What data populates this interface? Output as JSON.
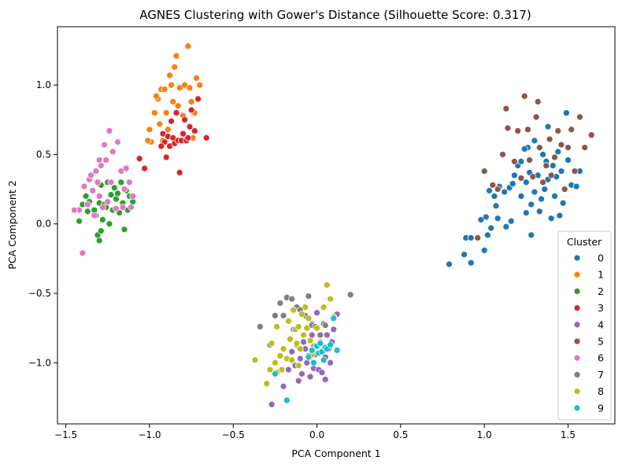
{
  "chart_data": {
    "type": "scatter",
    "title": "AGNES Clustering with Gower's Distance (Silhouette Score: 0.317)",
    "xlabel": "PCA Component 1",
    "ylabel": "PCA Component 2",
    "xlim": [
      -1.55,
      1.78
    ],
    "ylim": [
      -1.44,
      1.42
    ],
    "xticks": [
      -1.5,
      -1.0,
      -0.5,
      0.0,
      0.5,
      1.0,
      1.5
    ],
    "xtick_labels": [
      "−1.5",
      "−1.0",
      "−0.5",
      "0.0",
      "0.5",
      "1.0",
      "1.5"
    ],
    "yticks": [
      1.0,
      0.5,
      0.0,
      -0.5,
      -1.0
    ],
    "ytick_labels": [
      "1.0",
      "0.5",
      "0.0",
      "−0.5",
      "−1.0"
    ],
    "grid": false,
    "legend": {
      "title": "Cluster",
      "position": "lower-right"
    },
    "series": [
      {
        "name": "0",
        "color": "#1f77b4",
        "points": [
          [
            0.79,
            -0.29
          ],
          [
            0.88,
            -0.22
          ],
          [
            0.89,
            -0.1
          ],
          [
            0.92,
            -0.28
          ],
          [
            0.92,
            -0.1
          ],
          [
            0.98,
            0.03
          ],
          [
            1.0,
            -0.19
          ],
          [
            1.01,
            0.05
          ],
          [
            1.02,
            -0.08
          ],
          [
            1.03,
            0.24
          ],
          [
            1.04,
            -0.03
          ],
          [
            1.06,
            0.2
          ],
          [
            1.07,
            0.13
          ],
          [
            1.08,
            0.04
          ],
          [
            1.09,
            0.27
          ],
          [
            1.12,
            0.23
          ],
          [
            1.13,
            -0.02
          ],
          [
            1.15,
            0.26
          ],
          [
            1.17,
            0.29
          ],
          [
            1.18,
            0.35
          ],
          [
            1.2,
            0.42
          ],
          [
            1.22,
            0.2
          ],
          [
            1.22,
            0.45
          ],
          [
            1.25,
            0.08
          ],
          [
            1.25,
            0.3
          ],
          [
            1.26,
            0.55
          ],
          [
            1.27,
            0.37
          ],
          [
            1.28,
            -0.08
          ],
          [
            1.28,
            0.14
          ],
          [
            1.3,
            0.23
          ],
          [
            1.32,
            0.35
          ],
          [
            1.33,
            0.09
          ],
          [
            1.35,
            0.5
          ],
          [
            1.36,
            0.25
          ],
          [
            1.37,
            0.45
          ],
          [
            1.38,
            0.7
          ],
          [
            1.38,
            0.32
          ],
          [
            1.4,
            0.04
          ],
          [
            1.41,
            0.42
          ],
          [
            1.42,
            0.2
          ],
          [
            1.43,
            0.34
          ],
          [
            1.45,
            0.06
          ],
          [
            1.46,
            0.38
          ],
          [
            1.47,
            0.15
          ],
          [
            1.49,
            0.8
          ],
          [
            1.5,
            0.46
          ],
          [
            1.52,
            0.28
          ],
          [
            1.55,
            0.27
          ],
          [
            1.57,
            0.38
          ],
          [
            1.3,
            0.6
          ],
          [
            1.34,
            0.18
          ],
          [
            1.44,
            0.52
          ],
          [
            1.16,
            0.02
          ],
          [
            1.24,
            0.54
          ]
        ]
      },
      {
        "name": "1",
        "color": "#ff7f0e",
        "points": [
          [
            -1.0,
            0.68
          ],
          [
            -0.99,
            0.59
          ],
          [
            -0.97,
            0.8
          ],
          [
            -0.95,
            0.9
          ],
          [
            -0.94,
            0.72
          ],
          [
            -0.93,
            0.97
          ],
          [
            -0.92,
            0.6
          ],
          [
            -0.91,
            0.97
          ],
          [
            -0.9,
            0.8
          ],
          [
            -0.89,
            0.68
          ],
          [
            -0.88,
            1.07
          ],
          [
            -0.87,
            1.0
          ],
          [
            -0.86,
            0.88
          ],
          [
            -0.85,
            1.13
          ],
          [
            -0.84,
            1.21
          ],
          [
            -0.83,
            0.85
          ],
          [
            -0.82,
            0.98
          ],
          [
            -0.81,
            0.6
          ],
          [
            -0.8,
            0.78
          ],
          [
            -0.79,
            1.0
          ],
          [
            -0.78,
            0.62
          ],
          [
            -0.77,
            1.28
          ],
          [
            -0.76,
            0.98
          ],
          [
            -0.75,
            0.88
          ],
          [
            -0.74,
            0.62
          ],
          [
            -0.73,
            0.8
          ],
          [
            -0.72,
            1.05
          ],
          [
            -0.7,
            1.0
          ],
          [
            -0.96,
            0.92
          ],
          [
            -1.01,
            0.6
          ]
        ]
      },
      {
        "name": "2",
        "color": "#2ca02c",
        "points": [
          [
            -1.42,
            0.02
          ],
          [
            -1.4,
            0.14
          ],
          [
            -1.38,
            0.2
          ],
          [
            -1.37,
            0.09
          ],
          [
            -1.36,
            0.16
          ],
          [
            -1.34,
            0.24
          ],
          [
            -1.33,
            0.1
          ],
          [
            -1.32,
            0.06
          ],
          [
            -1.31,
            -0.08
          ],
          [
            -1.3,
            0.15
          ],
          [
            -1.3,
            -0.12
          ],
          [
            -1.29,
            0.28
          ],
          [
            -1.28,
            0.03
          ],
          [
            -1.27,
            0.14
          ],
          [
            -1.25,
            0.3
          ],
          [
            -1.24,
            0.0
          ],
          [
            -1.23,
            0.21
          ],
          [
            -1.22,
            0.1
          ],
          [
            -1.21,
            0.26
          ],
          [
            -1.2,
            0.18
          ],
          [
            -1.19,
            0.22
          ],
          [
            -1.18,
            0.08
          ],
          [
            -1.17,
            0.3
          ],
          [
            -1.16,
            0.15
          ],
          [
            -1.15,
            -0.04
          ],
          [
            -1.14,
            0.24
          ],
          [
            -1.13,
            0.1
          ],
          [
            -1.12,
            0.2
          ],
          [
            -1.1,
            0.16
          ],
          [
            -1.29,
            -0.05
          ],
          [
            -1.26,
            0.12
          ]
        ]
      },
      {
        "name": "3",
        "color": "#d62728",
        "points": [
          [
            -1.06,
            0.47
          ],
          [
            -1.03,
            0.4
          ],
          [
            -0.92,
            0.65
          ],
          [
            -0.91,
            0.59
          ],
          [
            -0.9,
            0.48
          ],
          [
            -0.89,
            0.63
          ],
          [
            -0.88,
            0.56
          ],
          [
            -0.87,
            0.74
          ],
          [
            -0.86,
            0.62
          ],
          [
            -0.85,
            0.58
          ],
          [
            -0.84,
            0.8
          ],
          [
            -0.83,
            0.6
          ],
          [
            -0.82,
            0.37
          ],
          [
            -0.81,
            0.6
          ],
          [
            -0.8,
            0.65
          ],
          [
            -0.79,
            0.75
          ],
          [
            -0.78,
            0.6
          ],
          [
            -0.76,
            0.7
          ],
          [
            -0.75,
            0.82
          ],
          [
            -0.73,
            0.67
          ],
          [
            -0.71,
            0.9
          ],
          [
            -0.66,
            0.62
          ],
          [
            -0.93,
            0.56
          ],
          [
            -0.77,
            0.62
          ]
        ]
      },
      {
        "name": "4",
        "color": "#9467bd",
        "points": [
          [
            -0.27,
            -1.3
          ],
          [
            -0.2,
            -1.17
          ],
          [
            -0.17,
            -1.05
          ],
          [
            -0.15,
            -0.92
          ],
          [
            -0.13,
            -1.02
          ],
          [
            -0.12,
            -0.87
          ],
          [
            -0.11,
            -1.13
          ],
          [
            -0.1,
            -0.97
          ],
          [
            -0.09,
            -1.08
          ],
          [
            -0.08,
            -0.85
          ],
          [
            -0.07,
            -0.9
          ],
          [
            -0.06,
            -1.0
          ],
          [
            -0.05,
            -0.95
          ],
          [
            -0.04,
            -1.1
          ],
          [
            -0.03,
            -0.8
          ],
          [
            -0.02,
            -1.04
          ],
          [
            -0.01,
            -0.94
          ],
          [
            0.0,
            -0.64
          ],
          [
            0.01,
            -1.05
          ],
          [
            0.02,
            -0.86
          ],
          [
            0.03,
            -1.07
          ],
          [
            0.04,
            -0.72
          ],
          [
            0.05,
            -0.96
          ],
          [
            0.06,
            -0.8
          ],
          [
            0.07,
            -0.9
          ],
          [
            0.08,
            -1.0
          ],
          [
            0.09,
            -0.85
          ],
          [
            0.1,
            -0.76
          ],
          [
            0.12,
            -0.65
          ],
          [
            -0.14,
            -0.76
          ],
          [
            -0.03,
            -0.72
          ],
          [
            0.05,
            -1.12
          ]
        ]
      },
      {
        "name": "5",
        "color": "#8c564b",
        "points": [
          [
            0.96,
            -0.1
          ],
          [
            1.0,
            0.38
          ],
          [
            1.08,
            0.25
          ],
          [
            1.11,
            0.5
          ],
          [
            1.13,
            0.83
          ],
          [
            1.14,
            0.69
          ],
          [
            1.18,
            0.45
          ],
          [
            1.2,
            0.67
          ],
          [
            1.22,
            0.33
          ],
          [
            1.24,
            0.92
          ],
          [
            1.26,
            0.68
          ],
          [
            1.27,
            0.46
          ],
          [
            1.29,
            0.34
          ],
          [
            1.31,
            0.77
          ],
          [
            1.32,
            0.88
          ],
          [
            1.33,
            0.55
          ],
          [
            1.35,
            0.3
          ],
          [
            1.37,
            0.42
          ],
          [
            1.39,
            0.61
          ],
          [
            1.4,
            0.35
          ],
          [
            1.42,
            0.48
          ],
          [
            1.44,
            0.67
          ],
          [
            1.46,
            0.57
          ],
          [
            1.48,
            0.25
          ],
          [
            1.5,
            0.55
          ],
          [
            1.52,
            0.68
          ],
          [
            1.54,
            0.38
          ],
          [
            1.57,
            0.77
          ],
          [
            1.6,
            0.55
          ],
          [
            1.64,
            0.64
          ],
          [
            1.05,
            0.28
          ]
        ]
      },
      {
        "name": "6",
        "color": "#e377c2",
        "points": [
          [
            -1.42,
            0.1
          ],
          [
            -1.4,
            -0.21
          ],
          [
            -1.39,
            0.27
          ],
          [
            -1.37,
            0.14
          ],
          [
            -1.36,
            0.32
          ],
          [
            -1.35,
            0.35
          ],
          [
            -1.34,
            0.24
          ],
          [
            -1.33,
            0.06
          ],
          [
            -1.32,
            0.38
          ],
          [
            -1.31,
            0.3
          ],
          [
            -1.3,
            0.46
          ],
          [
            -1.29,
            0.42
          ],
          [
            -1.28,
            0.12
          ],
          [
            -1.27,
            0.57
          ],
          [
            -1.26,
            0.46
          ],
          [
            -1.25,
            0.16
          ],
          [
            -1.24,
            0.67
          ],
          [
            -1.23,
            0.3
          ],
          [
            -1.22,
            0.52
          ],
          [
            -1.2,
            0.11
          ],
          [
            -1.19,
            0.59
          ],
          [
            -1.17,
            0.38
          ],
          [
            -1.16,
            0.12
          ],
          [
            -1.15,
            0.25
          ],
          [
            -1.14,
            0.4
          ],
          [
            -1.12,
            0.3
          ],
          [
            -1.11,
            0.12
          ],
          [
            -1.1,
            0.2
          ],
          [
            -1.45,
            0.1
          ],
          [
            -1.3,
            0.2
          ]
        ]
      },
      {
        "name": "7",
        "color": "#7f7f7f",
        "points": [
          [
            -0.34,
            -0.74
          ],
          [
            -0.28,
            -0.87
          ],
          [
            -0.25,
            -0.66
          ],
          [
            -0.22,
            -0.57
          ],
          [
            -0.2,
            -0.66
          ],
          [
            -0.18,
            -0.53
          ],
          [
            -0.15,
            -0.54
          ],
          [
            -0.12,
            -0.6
          ],
          [
            -0.1,
            -0.62
          ],
          [
            -0.07,
            -0.66
          ],
          [
            -0.05,
            -0.52
          ],
          [
            -0.03,
            -0.73
          ],
          [
            -0.01,
            -0.74
          ],
          [
            0.02,
            -0.8
          ],
          [
            0.05,
            -0.73
          ],
          [
            0.2,
            -0.51
          ],
          [
            -0.07,
            -0.6
          ]
        ]
      },
      {
        "name": "8",
        "color": "#bcbd22",
        "points": [
          [
            -0.37,
            -0.98
          ],
          [
            -0.3,
            -1.15
          ],
          [
            -0.28,
            -1.05
          ],
          [
            -0.27,
            -0.86
          ],
          [
            -0.25,
            -1.0
          ],
          [
            -0.24,
            -0.74
          ],
          [
            -0.22,
            -0.95
          ],
          [
            -0.21,
            -1.05
          ],
          [
            -0.2,
            -0.9
          ],
          [
            -0.18,
            -0.97
          ],
          [
            -0.17,
            -0.7
          ],
          [
            -0.16,
            -0.83
          ],
          [
            -0.15,
            -0.98
          ],
          [
            -0.14,
            -0.62
          ],
          [
            -0.13,
            -0.76
          ],
          [
            -0.12,
            -0.86
          ],
          [
            -0.11,
            -0.74
          ],
          [
            -0.1,
            -0.9
          ],
          [
            -0.09,
            -0.65
          ],
          [
            -0.08,
            -0.8
          ],
          [
            -0.07,
            -0.6
          ],
          [
            -0.06,
            -0.75
          ],
          [
            -0.05,
            -0.68
          ],
          [
            -0.04,
            -0.84
          ],
          [
            -0.03,
            -0.94
          ],
          [
            -0.02,
            -0.88
          ],
          [
            0.0,
            -0.75
          ],
          [
            0.02,
            -0.85
          ],
          [
            0.04,
            -0.6
          ],
          [
            0.06,
            -0.44
          ],
          [
            0.08,
            -0.54
          ],
          [
            0.1,
            -0.67
          ],
          [
            -0.24,
            -1.07
          ],
          [
            -0.11,
            -1.02
          ]
        ]
      },
      {
        "name": "9",
        "color": "#17becf",
        "points": [
          [
            -0.25,
            -1.08
          ],
          [
            -0.18,
            -1.27
          ],
          [
            -0.05,
            -0.96
          ],
          [
            -0.03,
            -0.91
          ],
          [
            -0.02,
            -1.0
          ],
          [
            0.0,
            -0.88
          ],
          [
            0.01,
            -0.93
          ],
          [
            0.02,
            -0.86
          ],
          [
            0.03,
            -0.92
          ],
          [
            0.04,
            -0.98
          ],
          [
            0.05,
            -0.89
          ],
          [
            0.06,
            -0.9
          ],
          [
            0.08,
            -0.87
          ],
          [
            0.1,
            -0.68
          ],
          [
            0.12,
            -0.91
          ]
        ]
      }
    ]
  }
}
